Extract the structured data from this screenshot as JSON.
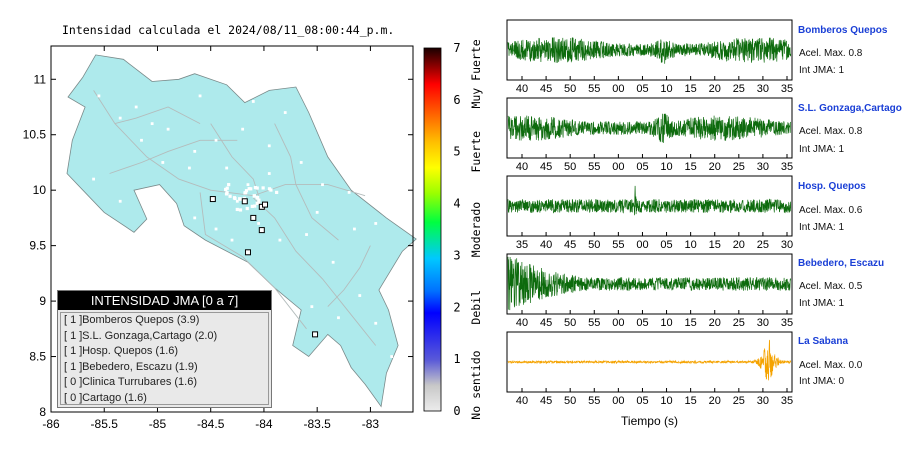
{
  "title": "Intensidad calculada el 2024/08/11_08:00:44_p.m.",
  "chart_data": [
    {
      "type": "map",
      "xlim": [
        -86,
        -82.6
      ],
      "ylim": [
        8,
        11.3
      ],
      "x_ticks": [
        "-86",
        "-85.5",
        "-85",
        "-84.5",
        "-84",
        "-83.5",
        "-83"
      ],
      "y_ticks": [
        "8",
        "8.5",
        "9",
        "9.5",
        "10",
        "10.5",
        "11"
      ],
      "land_color": "#aeeaec",
      "station_markers": [
        {
          "lon": -84.48,
          "lat": 9.92
        },
        {
          "lon": -84.18,
          "lat": 9.9
        },
        {
          "lon": -84.1,
          "lat": 9.75
        },
        {
          "lon": -84.02,
          "lat": 9.85
        },
        {
          "lon": -83.99,
          "lat": 9.87
        },
        {
          "lon": -84.02,
          "lat": 9.64
        },
        {
          "lon": -84.15,
          "lat": 9.44
        },
        {
          "lon": -83.52,
          "lat": 8.7
        }
      ]
    },
    {
      "type": "colorbar",
      "ticks": [
        "0",
        "1",
        "2",
        "3",
        "4",
        "5",
        "6",
        "7"
      ],
      "labels": [
        "No sentido",
        "Debil",
        "Moderado",
        "Fuerte",
        "Muy Fuerte"
      ]
    },
    {
      "type": "line",
      "xlabel": "Tiempo (s)",
      "series": [
        {
          "name": "Bomberos Quepos",
          "acel": "Acel. Max. 0.8",
          "int": "Int JMA: 1",
          "color": "#0d6b0d",
          "amplitude": 0.8,
          "seed": 11,
          "ticks": [
            "40",
            "45",
            "50",
            "55",
            "00",
            "05",
            "10",
            "15",
            "20",
            "25",
            "30",
            "35"
          ],
          "events": [
            [
              0.55,
              0.55,
              0.05
            ],
            [
              0.15,
              0.25,
              0.05
            ]
          ]
        },
        {
          "name": "S.L. Gonzaga,Cartago",
          "acel": "Acel. Max. 0.8",
          "int": "Int JMA: 1",
          "color": "#0d6b0d",
          "amplitude": 0.8,
          "seed": 23,
          "ticks": [
            "40",
            "45",
            "50",
            "55",
            "00",
            "05",
            "10",
            "15",
            "20",
            "25",
            "30",
            "35"
          ],
          "events": [
            [
              0.55,
              0.6,
              0.06
            ],
            [
              0.12,
              0.3,
              0.05
            ]
          ]
        },
        {
          "name": "Hosp. Quepos",
          "acel": "Acel. Max. 0.6",
          "int": "Int JMA: 1",
          "color": "#0d6b0d",
          "amplitude": 0.6,
          "seed": 37,
          "ticks": [
            "35",
            "40",
            "45",
            "50",
            "55",
            "00",
            "05",
            "10",
            "15",
            "20",
            "25",
            "30"
          ],
          "events": [
            [
              0.45,
              0.9,
              0.004
            ],
            [
              0.05,
              0.2,
              0.05
            ]
          ]
        },
        {
          "name": "Bebedero, Escazu",
          "acel": "Acel. Max. 0.5",
          "int": "Int JMA: 1",
          "color": "#0d6b0d",
          "amplitude": 0.5,
          "seed": 53,
          "ticks": [
            "40",
            "45",
            "50",
            "55",
            "00",
            "05",
            "10",
            "15",
            "20",
            "25",
            "30",
            "35"
          ],
          "events": [
            [
              0.03,
              0.95,
              0.05
            ]
          ]
        },
        {
          "name": "La Sabana",
          "acel": "Acel. Max. 0.0",
          "int": "Int JMA: 0",
          "color": "#f5a300",
          "amplitude": 0.0,
          "seed": 71,
          "ticks": [
            "40",
            "45",
            "50",
            "55",
            "00",
            "05",
            "10",
            "15",
            "20",
            "25",
            "30",
            "35"
          ],
          "events": [
            [
              0.92,
              0.95,
              0.02
            ]
          ]
        }
      ]
    }
  ],
  "legend": {
    "title": "INTENSIDAD JMA [0 a 7]",
    "rows": [
      {
        "idx": "[ 1 ]",
        "label": "Bomberos Quepos (3.9)"
      },
      {
        "idx": "[ 1 ]",
        "label": "S.L. Gonzaga,Cartago (2.0)"
      },
      {
        "idx": "[ 1 ]",
        "label": "Hosp. Quepos (1.6)"
      },
      {
        "idx": "[ 1 ]",
        "label": "Bebedero, Escazu (1.9)"
      },
      {
        "idx": "[ 0 ]",
        "label": "Clinica Turrubares (1.6)"
      },
      {
        "idx": "[ 0 ]",
        "label": "Cartago (1.6)"
      }
    ]
  }
}
